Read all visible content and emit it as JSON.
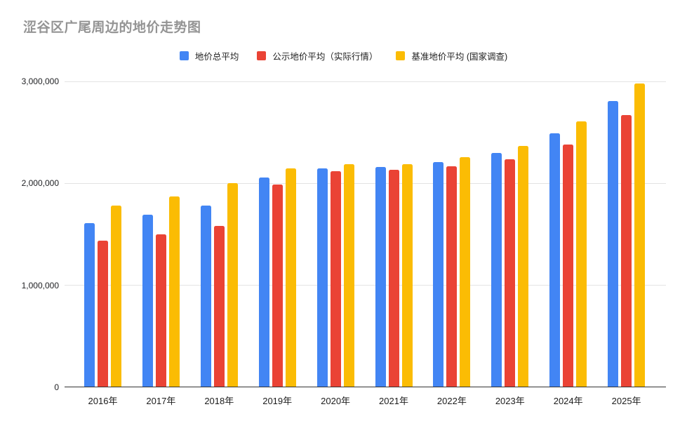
{
  "title": "涩谷区广尾周边的地价走势图",
  "colors": {
    "series_blue": "#4285F4",
    "series_red": "#EA4335",
    "series_yellow": "#FBBC04",
    "gridline": "#e3e3e3",
    "axis_line": "#333333",
    "title_text": "#949494",
    "label_text": "#1c1c1c"
  },
  "chart_data": {
    "type": "bar",
    "title": "涩谷区广尾周边的地价走势图",
    "categories": [
      "2016年",
      "2017年",
      "2018年",
      "2019年",
      "2020年",
      "2021年",
      "2022年",
      "2023年",
      "2024年",
      "2025年"
    ],
    "series": [
      {
        "name": "地价总平均",
        "color": "#4285F4",
        "values": [
          1610000,
          1690000,
          1780000,
          2060000,
          2150000,
          2160000,
          2210000,
          2300000,
          2490000,
          2810000
        ]
      },
      {
        "name": "公示地价平均（实际行情）",
        "color": "#EA4335",
        "values": [
          1440000,
          1500000,
          1580000,
          1990000,
          2120000,
          2130000,
          2170000,
          2240000,
          2380000,
          2670000
        ]
      },
      {
        "name": "基准地价平均 (国家调查)",
        "color": "#FBBC04",
        "values": [
          1780000,
          1870000,
          2000000,
          2150000,
          2190000,
          2190000,
          2260000,
          2370000,
          2610000,
          2980000
        ]
      }
    ],
    "xlabel": "",
    "ylabel": "",
    "ylim": [
      0,
      3000000
    ],
    "yticks": [
      {
        "value": 3000000,
        "label": "3,000,000"
      },
      {
        "value": 2000000,
        "label": "2,000,000"
      },
      {
        "value": 1000000,
        "label": "1,000,000"
      },
      {
        "value": 0,
        "label": "0"
      }
    ],
    "grid": true,
    "legend_position": "top"
  }
}
